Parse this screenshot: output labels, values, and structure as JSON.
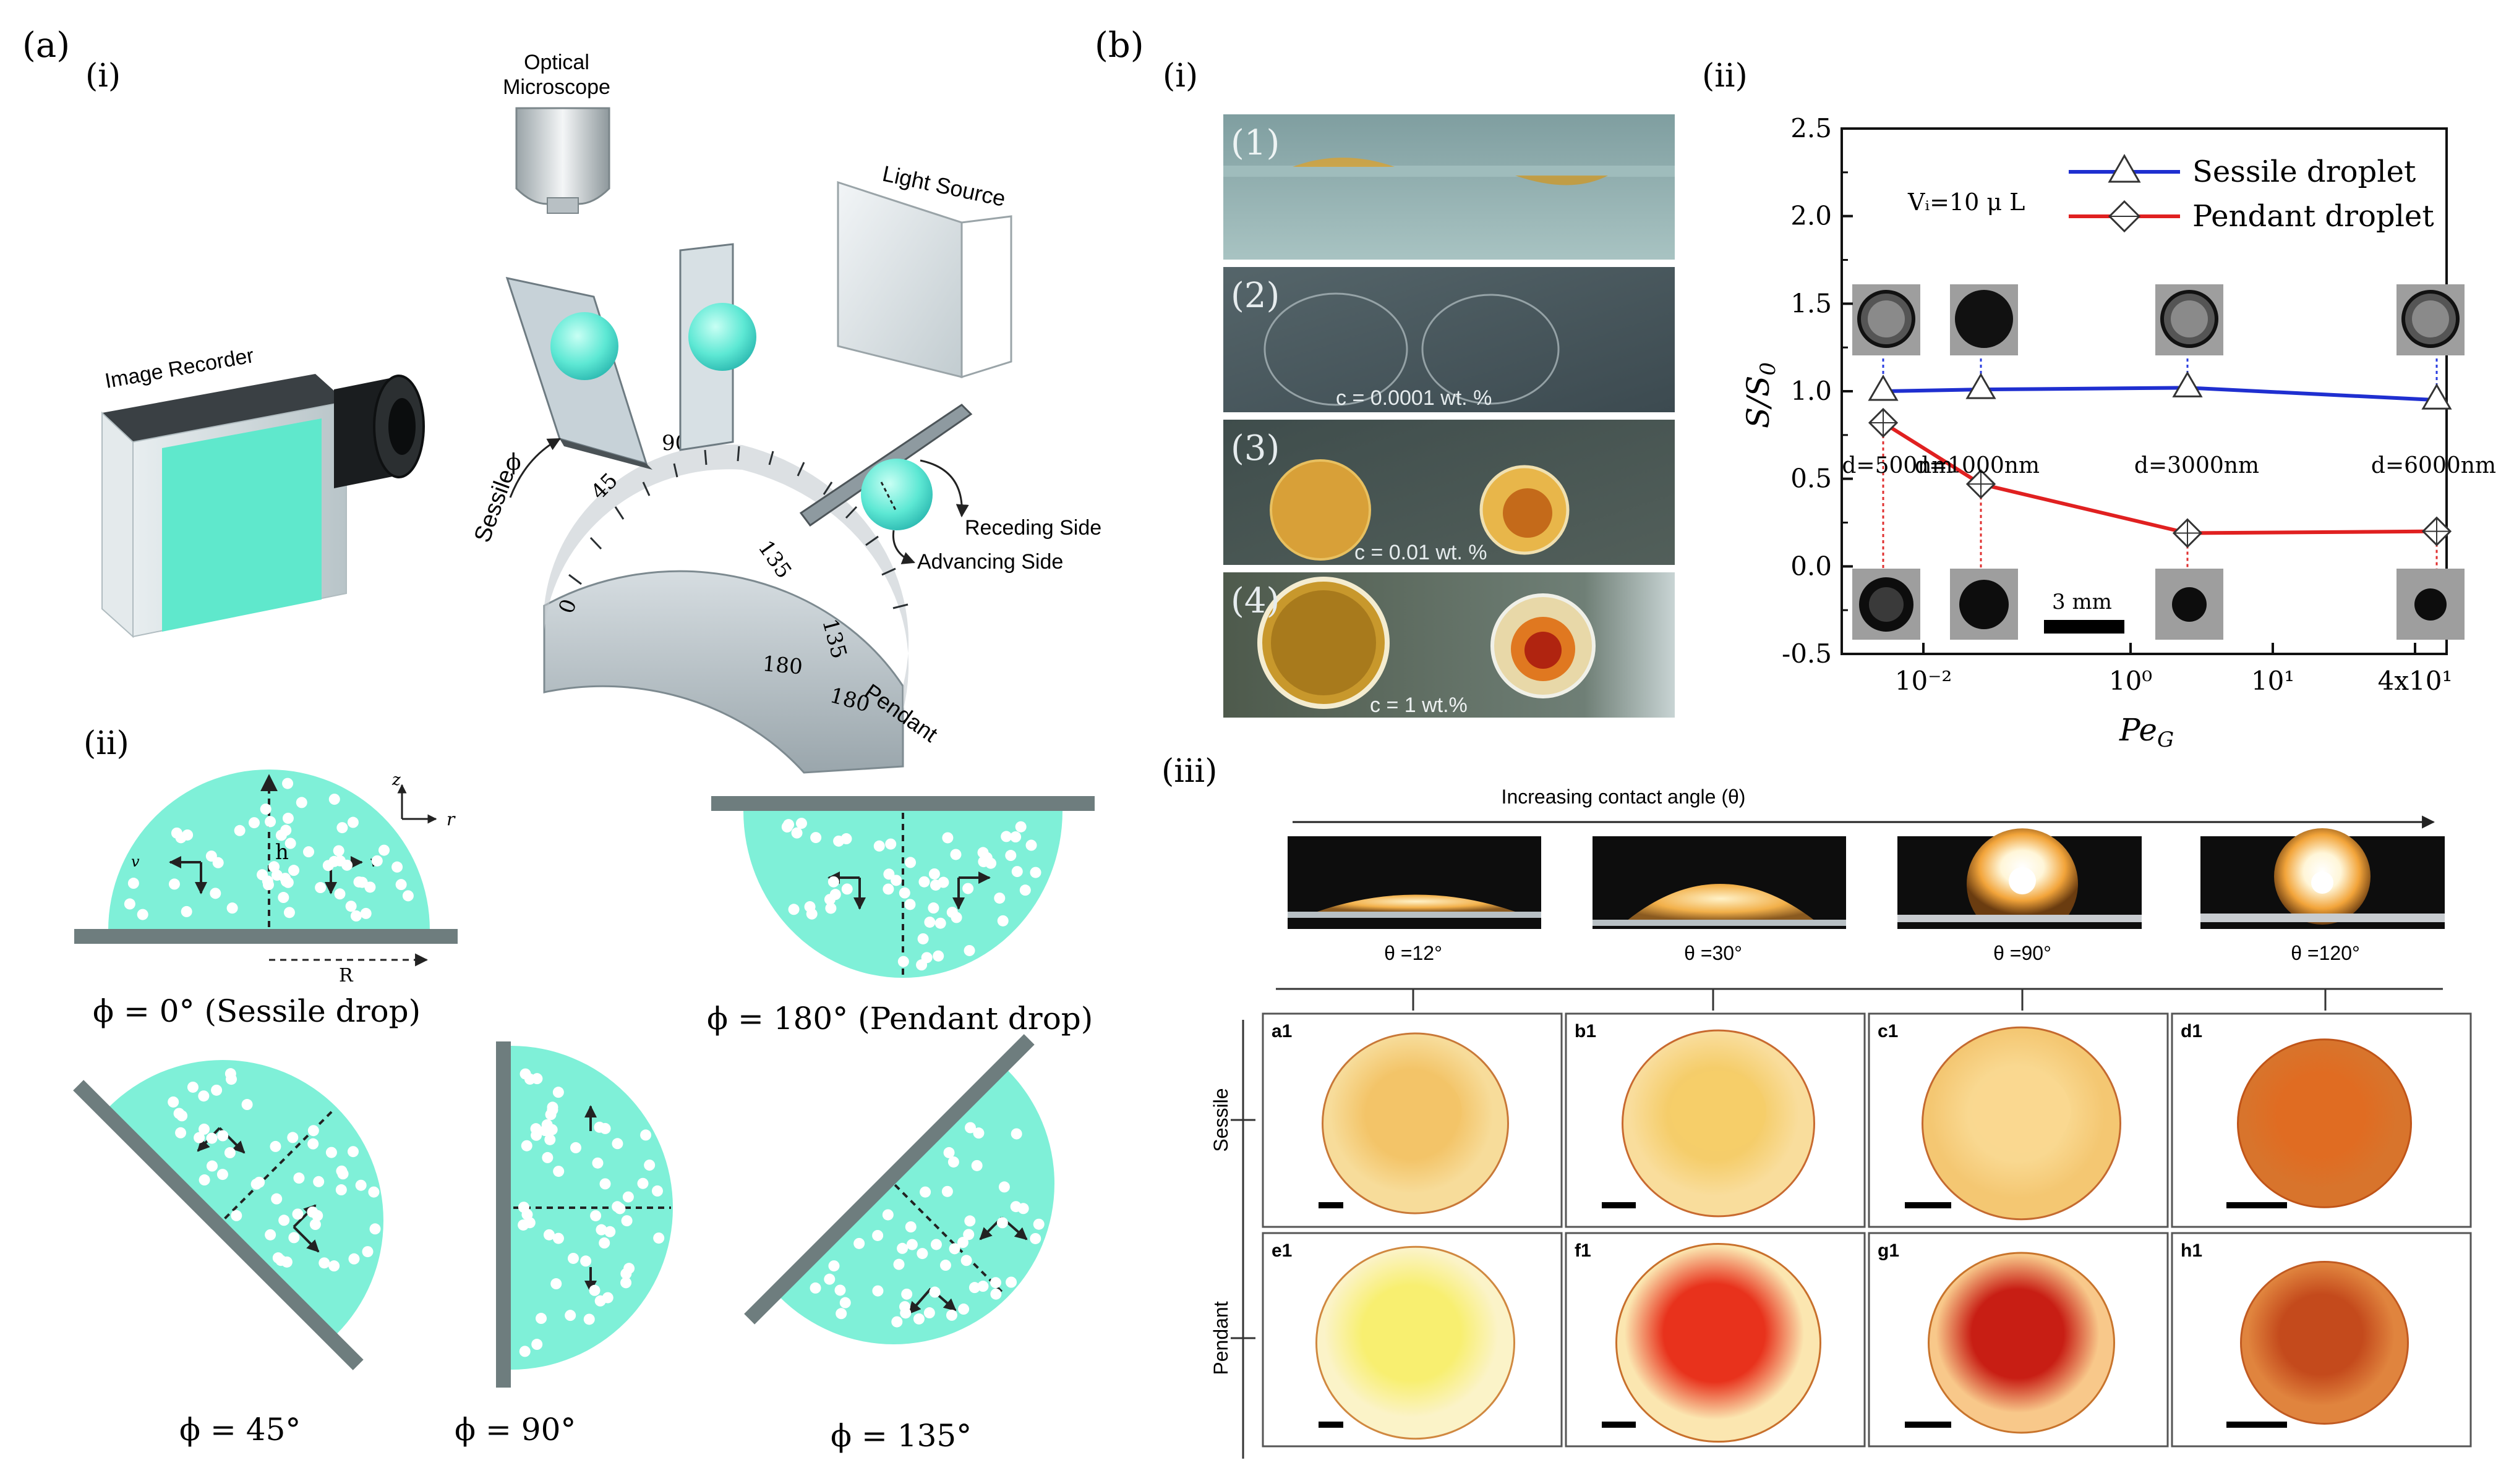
{
  "colors": {
    "drop": "#7ff0d8",
    "surface": "#6e7d7e",
    "sessile_line": "#1f2fd0",
    "pendant_line": "#e02020",
    "blue_guides": "#2a3de0",
    "red_guides": "#e03030"
  },
  "panel_a": {
    "label": "(a)",
    "i": {
      "label": "(i)",
      "optical_microscope": "Optical\nMicroscope",
      "light_source": "Light Source",
      "image_recorder": "Image Recorder",
      "sessile": "Sessile",
      "pendant": "Pendant",
      "receding_side": "Receding Side",
      "advancing_side": "Advancing Side",
      "phi": "ϕ",
      "protractor_ticks": [
        "0",
        "45",
        "90",
        "135",
        "180",
        "135",
        "180"
      ]
    },
    "ii": {
      "label": "(ii)",
      "phi0": "ϕ = 0° (Sessile drop)",
      "phi180": "ϕ = 180°  (Pendant drop)",
      "phi45": "ϕ = 45°",
      "phi90": "ϕ = 90°",
      "phi135": "ϕ = 135°",
      "h": "h",
      "R": "R",
      "z": "z",
      "r": "r",
      "v_rec": "v",
      "v_adv": "v"
    }
  },
  "panel_b": {
    "label": "(b)",
    "i": {
      "label": "(i)",
      "photos": [
        {
          "num": "(1)",
          "caption": ""
        },
        {
          "num": "(2)",
          "caption": "c = 0.0001 wt. %"
        },
        {
          "num": "(3)",
          "caption": "c = 0.01 wt. %"
        },
        {
          "num": "(4)",
          "caption": "c = 1 wt.%"
        }
      ]
    },
    "ii": {
      "label": "(ii)"
    },
    "iii": {
      "label": "(iii)",
      "arrow_title": "Increasing contact angle (θ)",
      "angles": [
        "θ =12°",
        "θ =30°",
        "θ =90°",
        "θ =120°"
      ],
      "row_labels": [
        "Sessile",
        "Pendant"
      ],
      "tiles": [
        {
          "id": "a1",
          "center": "#f3c468",
          "edge": "#f7dc9a",
          "ring": "#c87838"
        },
        {
          "id": "b1",
          "center": "#f5cd6a",
          "edge": "#f9dd9c",
          "ring": "#c86a30"
        },
        {
          "id": "c1",
          "center": "#f9d890",
          "edge": "#f4c772",
          "ring": "#c46a30"
        },
        {
          "id": "d1",
          "center": "#e06c22",
          "edge": "#d8742c",
          "ring": "#c05418"
        },
        {
          "id": "e1",
          "center": "#f8ef70",
          "edge": "#fbf3c8",
          "ring": "#d08840"
        },
        {
          "id": "f1",
          "center": "#e8321c",
          "edge": "#fbe6b0",
          "ring": "#c8702c"
        },
        {
          "id": "g1",
          "center": "#c81e14",
          "edge": "#f8c88a",
          "ring": "#c8742c"
        },
        {
          "id": "h1",
          "center": "#c44a1c",
          "edge": "#e0843e",
          "ring": "#c05a22"
        }
      ]
    }
  },
  "chart_data": {
    "type": "line",
    "xlabel": "Pe_G",
    "ylabel": "S/S0",
    "x_tick_labels": [
      "10⁻²",
      "10⁰",
      "10¹",
      "4x10¹"
    ],
    "ylim": [
      -0.5,
      2.5
    ],
    "y_ticks": [
      -0.5,
      0.0,
      0.5,
      1.0,
      1.5,
      2.0,
      2.5
    ],
    "y_tick_labels": [
      "-0.5",
      "0.0",
      "0.5",
      "1.0",
      "1.5",
      "2.0",
      "2.5"
    ],
    "categories": [
      "d=500nm",
      "d=1000nm",
      "d=3000nm",
      "d=6000nm"
    ],
    "series": [
      {
        "name": "Sessile droplet",
        "marker": "triangle",
        "values": [
          1.0,
          1.01,
          1.02,
          0.95
        ]
      },
      {
        "name": "Pendant droplet",
        "marker": "diamond",
        "values": [
          0.82,
          0.47,
          0.19,
          0.2
        ]
      }
    ],
    "annotation": "Vᵢ=10 μ L",
    "scale_bar": "3 mm",
    "legend": "top-right"
  }
}
